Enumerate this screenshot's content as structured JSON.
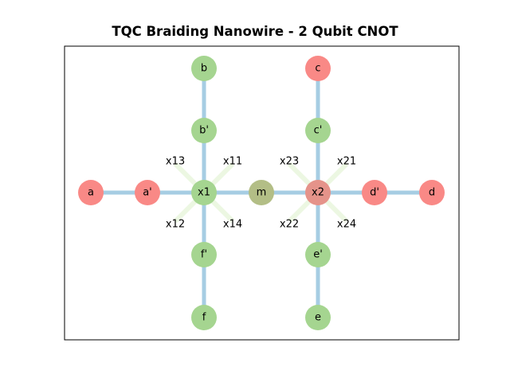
{
  "title": "TQC Braiding Nanowire - 2 Qubit CNOT",
  "colors": {
    "wire": "#a6cde3",
    "cross": "#b2df8a",
    "node_red": "#f98986",
    "node_green": "#a5d590",
    "node_olive": "#b3be86",
    "node_x2": "#e5938a",
    "frame": "#000000"
  },
  "nodes": [
    {
      "id": "a",
      "label": "a",
      "color": "node_red"
    },
    {
      "id": "a_p",
      "label": "a'",
      "color": "node_red"
    },
    {
      "id": "x1",
      "label": "x1",
      "color": "node_green"
    },
    {
      "id": "m",
      "label": "m",
      "color": "node_olive"
    },
    {
      "id": "x2",
      "label": "x2",
      "color": "node_x2"
    },
    {
      "id": "d_p",
      "label": "d'",
      "color": "node_red"
    },
    {
      "id": "d",
      "label": "d",
      "color": "node_red"
    },
    {
      "id": "b",
      "label": "b",
      "color": "node_green"
    },
    {
      "id": "b_p",
      "label": "b'",
      "color": "node_green"
    },
    {
      "id": "f_p",
      "label": "f'",
      "color": "node_green"
    },
    {
      "id": "f",
      "label": "f",
      "color": "node_green"
    },
    {
      "id": "c",
      "label": "c",
      "color": "node_red"
    },
    {
      "id": "c_p",
      "label": "c'",
      "color": "node_green"
    },
    {
      "id": "e_p",
      "label": "e'",
      "color": "node_green"
    },
    {
      "id": "e",
      "label": "e",
      "color": "node_green"
    }
  ],
  "edges": [
    [
      "a",
      "a_p"
    ],
    [
      "a_p",
      "x1"
    ],
    [
      "x1",
      "m"
    ],
    [
      "m",
      "x2"
    ],
    [
      "x2",
      "d_p"
    ],
    [
      "d_p",
      "d"
    ],
    [
      "b",
      "b_p"
    ],
    [
      "b_p",
      "x1"
    ],
    [
      "x1",
      "f_p"
    ],
    [
      "f_p",
      "f"
    ],
    [
      "c",
      "c_p"
    ],
    [
      "c_p",
      "x2"
    ],
    [
      "x2",
      "e_p"
    ],
    [
      "e_p",
      "e"
    ]
  ],
  "junction_labels": [
    {
      "id": "x13",
      "label": "x13"
    },
    {
      "id": "x11",
      "label": "x11"
    },
    {
      "id": "x12",
      "label": "x12"
    },
    {
      "id": "x14",
      "label": "x14"
    },
    {
      "id": "x23",
      "label": "x23"
    },
    {
      "id": "x21",
      "label": "x21"
    },
    {
      "id": "x22",
      "label": "x22"
    },
    {
      "id": "x24",
      "label": "x24"
    }
  ]
}
